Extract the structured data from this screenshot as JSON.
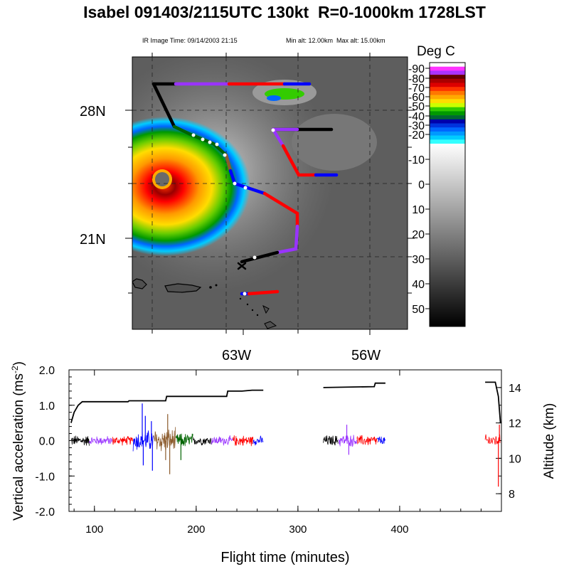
{
  "title": "Isabel 091403/2115UTC 130kt  R=0-1000km 1728LST",
  "ir_image_time": "IR Image Time: 09/14/2003 21:15",
  "alt_range": "Min alt: 12.00km  Max alt: 15.00km",
  "colorbar": {
    "title": "Deg  C",
    "ticks": [
      "-90",
      "-80",
      "-70",
      "-60",
      "-50",
      "-40",
      "-30",
      "-20",
      "-10",
      "0",
      "10",
      "20",
      "30",
      "40",
      "50"
    ],
    "swatches": [
      "#ffffff",
      "#ff33ff",
      "#aa33ff",
      "#660000",
      "#aa0000",
      "#dd0000",
      "#ff3300",
      "#ff7700",
      "#ffaa00",
      "#ffdd00",
      "#ccff00",
      "#33cc00",
      "#009900",
      "#006633",
      "#0000aa",
      "#0033dd",
      "#0066ff",
      "#0099ff",
      "#00ccff",
      "#33ffff"
    ]
  },
  "map": {
    "lat_labels": [
      "28N",
      "21N"
    ],
    "lon_labels": [
      "63W",
      "56W"
    ],
    "track_colors": [
      "#000000",
      "#9933ff",
      "#ff0000",
      "#0000ff",
      "#8b5a2b",
      "#006400"
    ]
  },
  "chart_data": {
    "type": "line",
    "xlabel": "Flight time (minutes)",
    "ylabel": "Vertical acceleration (ms",
    "ylabel_sup": "-2",
    "ylabel_close": ")",
    "y2label": "Altitude (km)",
    "xlim": [
      75,
      500
    ],
    "ylim": [
      -2.0,
      2.0
    ],
    "y2lim": [
      7,
      15
    ],
    "x_ticks": [
      "100",
      "200",
      "300",
      "400"
    ],
    "x_tick_values": [
      100,
      200,
      300,
      400
    ],
    "y_ticks": [
      "2.0",
      "1.0",
      "0.0",
      "-1.0",
      "-2.0"
    ],
    "y_tick_values": [
      2.0,
      1.0,
      0.0,
      -1.0,
      -2.0
    ],
    "y2_ticks": [
      "14",
      "12",
      "10",
      "8"
    ],
    "y2_tick_values": [
      14,
      12,
      10,
      8
    ],
    "altitude_series": {
      "name": "Altitude",
      "segments": [
        [
          [
            77,
            12.0
          ],
          [
            80,
            12.6
          ],
          [
            84,
            13.0
          ],
          [
            88,
            13.2
          ],
          [
            133,
            13.2
          ],
          [
            134,
            13.25
          ],
          [
            170,
            13.25
          ],
          [
            171,
            13.5
          ],
          [
            230,
            13.5
          ],
          [
            231,
            13.8
          ],
          [
            245,
            13.8
          ],
          [
            255,
            13.85
          ],
          [
            266,
            13.85
          ]
        ],
        [
          [
            325,
            14.0
          ],
          [
            375,
            14.05
          ],
          [
            376,
            14.25
          ],
          [
            386,
            14.25
          ]
        ],
        [
          [
            484,
            14.3
          ],
          [
            494,
            14.3
          ],
          [
            497,
            13.5
          ],
          [
            499,
            12.0
          ]
        ]
      ]
    },
    "acceleration_series": [
      {
        "color": "#000000",
        "x": [
          77,
          95
        ],
        "amplitude": 0.18
      },
      {
        "color": "#9933ff",
        "x": [
          95,
          118
        ],
        "amplitude": 0.15
      },
      {
        "color": "#ff0000",
        "x": [
          118,
          138
        ],
        "amplitude": 0.15
      },
      {
        "color": "#0000ff",
        "x": [
          138,
          158
        ],
        "amplitude": 0.35,
        "spikes": [
          [
            147,
            1.05
          ],
          [
            148,
            -0.7
          ],
          [
            150,
            0.7
          ],
          [
            157,
            -0.85
          ],
          [
            156,
            0.55
          ]
        ]
      },
      {
        "color": "#8b5a2b",
        "x": [
          158,
          180
        ],
        "amplitude": 0.4,
        "spikes": [
          [
            172,
            0.75
          ],
          [
            174,
            -0.95
          ],
          [
            170,
            -0.55
          ]
        ]
      },
      {
        "color": "#006400",
        "x": [
          180,
          197
        ],
        "amplitude": 0.25,
        "spikes": [
          [
            185,
            -0.55
          ]
        ]
      },
      {
        "color": "#000000",
        "x": [
          197,
          215
        ],
        "amplitude": 0.15
      },
      {
        "color": "#9933ff",
        "x": [
          215,
          236
        ],
        "amplitude": 0.15
      },
      {
        "color": "#ff0000",
        "x": [
          236,
          256
        ],
        "amplitude": 0.18
      },
      {
        "color": "#0000ff",
        "x": [
          256,
          266
        ],
        "amplitude": 0.15
      },
      {
        "color": "#000000",
        "x": [
          325,
          340
        ],
        "amplitude": 0.18
      },
      {
        "color": "#9933ff",
        "x": [
          340,
          358
        ],
        "amplitude": 0.2,
        "spikes": [
          [
            348,
            0.45
          ],
          [
            350,
            -0.4
          ]
        ]
      },
      {
        "color": "#ff0000",
        "x": [
          358,
          378
        ],
        "amplitude": 0.18
      },
      {
        "color": "#0000ff",
        "x": [
          378,
          386
        ],
        "amplitude": 0.15
      },
      {
        "color": "#ff0000",
        "x": [
          484,
          499
        ],
        "amplitude": 0.2,
        "spikes": [
          [
            497,
            -1.3
          ],
          [
            498,
            0.45
          ]
        ]
      }
    ]
  }
}
